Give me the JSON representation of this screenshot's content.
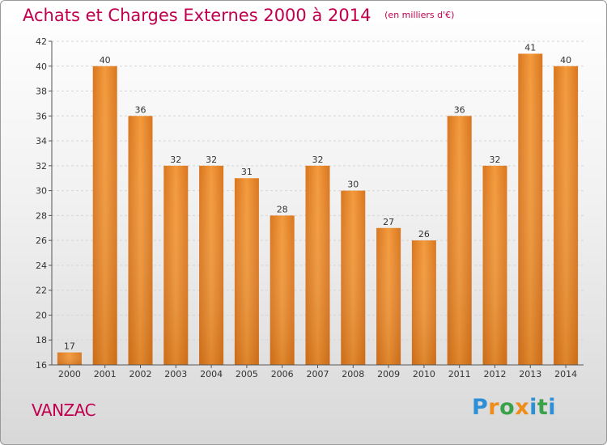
{
  "chart_data": {
    "type": "bar",
    "title": "Achats et Charges Externes 2000 à 2014",
    "subtitle": "(en milliers d'€)",
    "categories": [
      "2000",
      "2001",
      "2002",
      "2003",
      "2004",
      "2005",
      "2006",
      "2007",
      "2008",
      "2009",
      "2010",
      "2011",
      "2012",
      "2013",
      "2014"
    ],
    "values": [
      17,
      40,
      36,
      32,
      32,
      31,
      28,
      32,
      30,
      27,
      26,
      36,
      32,
      41,
      40
    ],
    "ylim": [
      16,
      42
    ],
    "yticks": [
      16,
      18,
      20,
      22,
      24,
      26,
      28,
      30,
      32,
      34,
      36,
      38,
      40,
      42
    ],
    "grid": true,
    "data_labels": true,
    "bar_color": "#f39a3c",
    "bar_color_dark": "#d9761f"
  },
  "location": "VANZAC",
  "brand": {
    "letters": [
      "P",
      "r",
      "o",
      "x",
      "i",
      "t",
      "i"
    ],
    "colors": [
      "#2d8fd6",
      "#f08c19",
      "#3aa24a",
      "#f08c19",
      "#2d8fd6",
      "#3aa24a",
      "#2d8fd6"
    ]
  }
}
